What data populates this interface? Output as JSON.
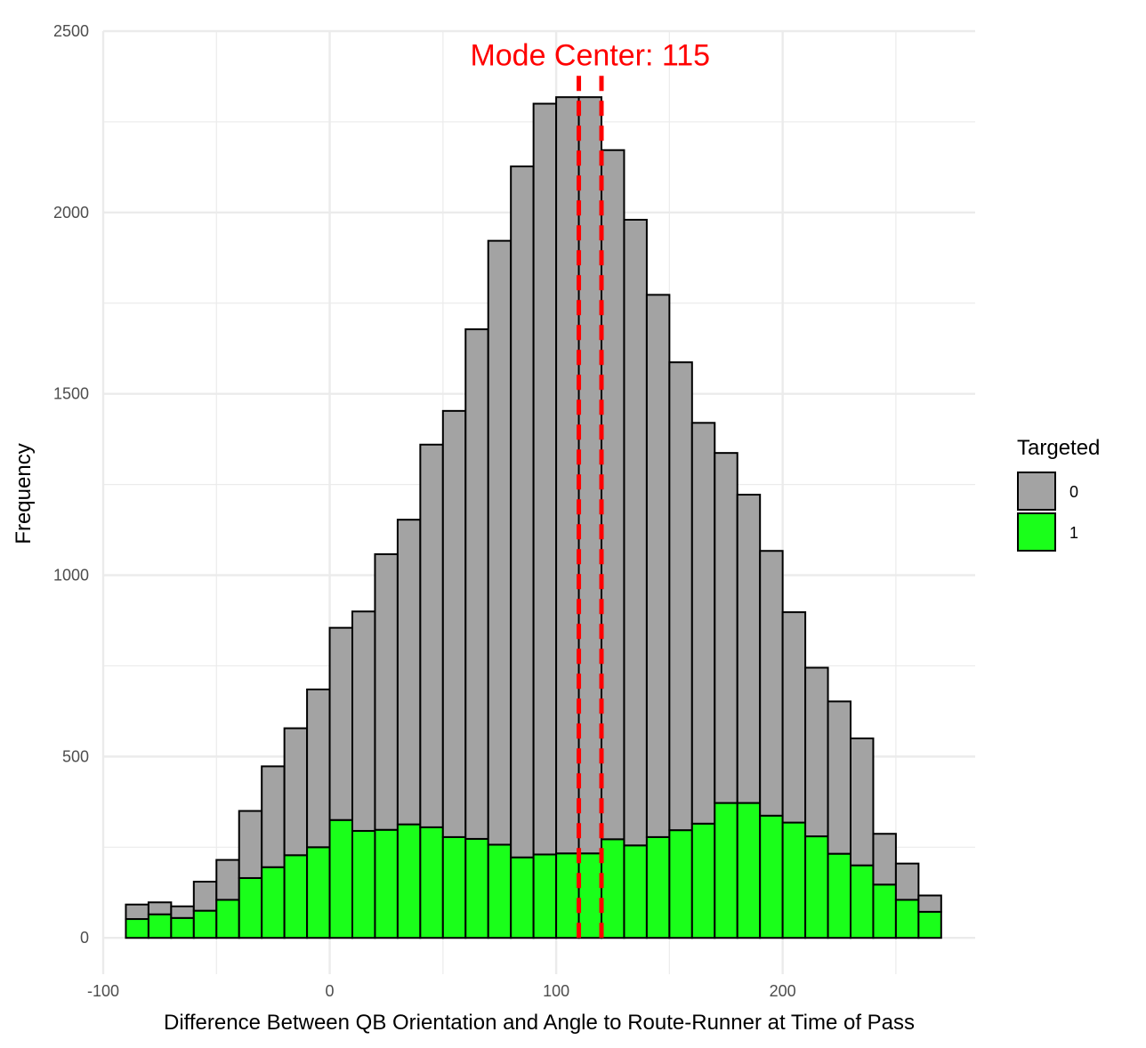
{
  "chart_data": {
    "type": "bar",
    "subtype": "stacked-histogram",
    "title": "",
    "xlabel": "Difference Between QB Orientation and Angle to Route-Runner at Time of Pass",
    "ylabel": "Frequency",
    "xlim": [
      -100,
      285
    ],
    "ylim": [
      -100,
      2500
    ],
    "x_ticks": [
      -100,
      0,
      100,
      200
    ],
    "x_tick_labels": [
      "-100",
      "0",
      "100",
      "200"
    ],
    "y_ticks": [
      0,
      500,
      1000,
      1500,
      2000,
      2500
    ],
    "y_tick_labels": [
      "0",
      "500",
      "1000",
      "1500",
      "2000",
      "2500"
    ],
    "grid": true,
    "bin_width": 10,
    "bin_starts": [
      -90,
      -80,
      -70,
      -60,
      -50,
      -40,
      -30,
      -20,
      -10,
      0,
      10,
      20,
      30,
      40,
      50,
      60,
      70,
      80,
      90,
      100,
      110,
      120,
      130,
      140,
      150,
      160,
      170,
      180,
      190,
      200,
      210,
      220,
      230,
      240,
      250,
      260
    ],
    "series": [
      {
        "name": "0",
        "color": "#a3a3a3",
        "values": [
          40,
          33,
          32,
          80,
          110,
          185,
          278,
          350,
          435,
          530,
          605,
          760,
          840,
          1055,
          1175,
          1405,
          1665,
          1905,
          2070,
          2085,
          2085,
          1900,
          1725,
          1495,
          1290,
          1105,
          965,
          850,
          730,
          580,
          465,
          420,
          350,
          140,
          100,
          45
        ]
      },
      {
        "name": "1",
        "color": "#1aff1a",
        "values": [
          52,
          65,
          55,
          75,
          105,
          165,
          195,
          228,
          250,
          325,
          295,
          298,
          313,
          305,
          278,
          273,
          257,
          222,
          230,
          233,
          233,
          272,
          255,
          278,
          297,
          315,
          372,
          372,
          337,
          318,
          280,
          232,
          200,
          147,
          105,
          72
        ]
      }
    ],
    "reference_lines": {
      "x": [
        110,
        120
      ],
      "color": "#ff0000",
      "style": "dashed"
    },
    "annotation": {
      "text": "Mode Center: 115",
      "x": 115,
      "y": 2430,
      "color": "#ff0000"
    },
    "legend": {
      "title": "Targeted",
      "position": "right"
    }
  }
}
